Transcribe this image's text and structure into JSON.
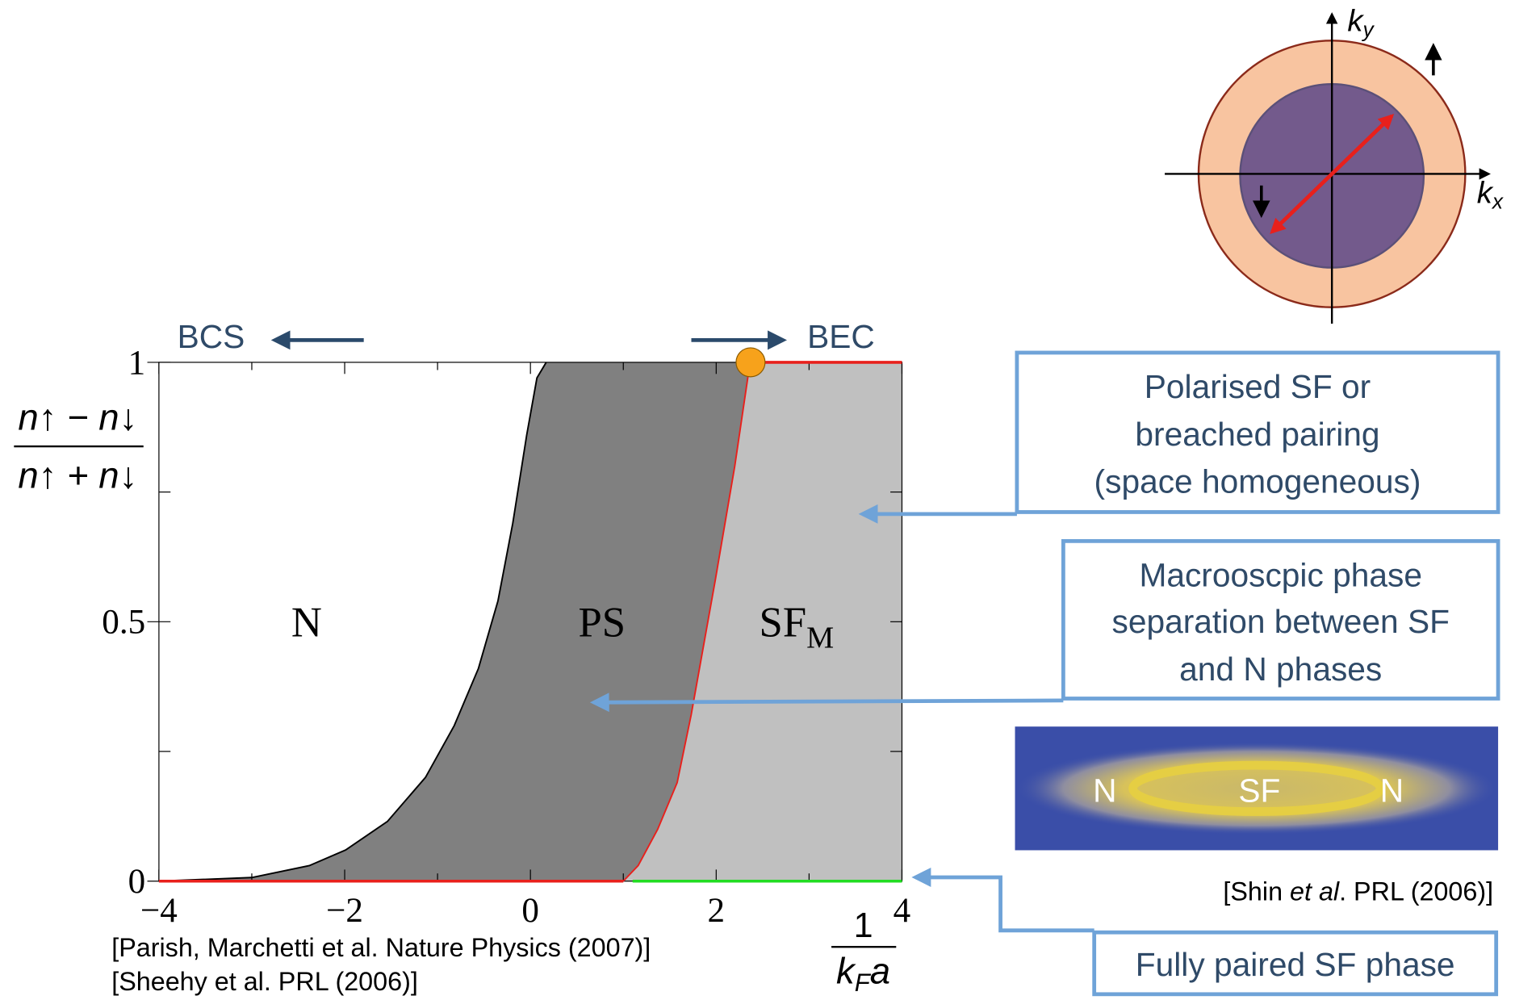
{
  "chart_data": {
    "type": "area",
    "xlim": [
      -4,
      4
    ],
    "ylim": [
      0,
      1
    ],
    "xticks": [
      {
        "value": -4,
        "label": "−4"
      },
      {
        "value": -2,
        "label": "−2"
      },
      0,
      2,
      4
    ],
    "yticks": [
      0,
      0.5,
      1
    ],
    "xminor": [
      -3,
      -1,
      1,
      3
    ],
    "yminor": [
      0.25,
      0.75
    ],
    "ylabel": {
      "numerator": "n↑ − n↓",
      "denominator": "n↑ + n↓"
    },
    "xlabel": {
      "numerator": "1",
      "denominator": [
        "k",
        "F",
        "a"
      ]
    },
    "left_label": "BCS",
    "right_label": "BEC",
    "regions": [
      {
        "label": "N",
        "color": "#ffffff"
      },
      {
        "label": "PS",
        "color": "#808080"
      },
      {
        "label": "SF",
        "sub": "M",
        "color": "#c0c0c0"
      }
    ],
    "series": [
      {
        "color": "#000000",
        "x": [
          -4,
          -3.0,
          -2.38,
          -1.99,
          -1.54,
          -1.13,
          -0.82,
          -0.56,
          -0.35,
          -0.19,
          -0.04,
          0.07,
          0.17
        ],
        "values": [
          0,
          0.007,
          0.03,
          0.06,
          0.115,
          0.2,
          0.3,
          0.41,
          0.54,
          0.69,
          0.86,
          0.97,
          1
        ]
      },
      {
        "color": "#e8201c",
        "x": [
          1.0,
          1.16,
          1.37,
          1.58,
          1.73,
          1.99,
          2.2,
          2.34,
          2.36
        ],
        "values": [
          0,
          0.03,
          0.1,
          0.19,
          0.32,
          0.58,
          0.8,
          0.97,
          1
        ]
      },
      {
        "color": "#e8201c",
        "x": [
          -4,
          1.0
        ],
        "values": [
          0,
          0
        ]
      },
      {
        "color": "#22dd22",
        "x": [
          1.1,
          4
        ],
        "values": [
          0,
          0
        ]
      },
      {
        "color": "#e8201c",
        "x": [
          2.37,
          4
        ],
        "values": [
          1,
          1
        ]
      }
    ],
    "marker": {
      "x": 2.37,
      "y": 1,
      "color": "#f7a21b"
    }
  },
  "citations": [
    "[Parish, Marchetti et al. Nature Physics (2007)]",
    "[Sheehy et al. PRL (2006)]"
  ],
  "fermi_diagram": {
    "ky": [
      "k",
      "y"
    ],
    "kx": [
      "k",
      "x"
    ]
  },
  "boxes": [
    [
      "Polarised SF or",
      "breached pairing",
      "(space homogeneous)"
    ],
    [
      "Macrooscpic phase",
      "separation between SF",
      "and N phases"
    ],
    [
      "Fully paired SF phase"
    ]
  ],
  "image_labels": [
    "N",
    "SF",
    "N"
  ],
  "image_citation": [
    "[Shin ",
    "et al",
    ". PRL (2006)]"
  ]
}
